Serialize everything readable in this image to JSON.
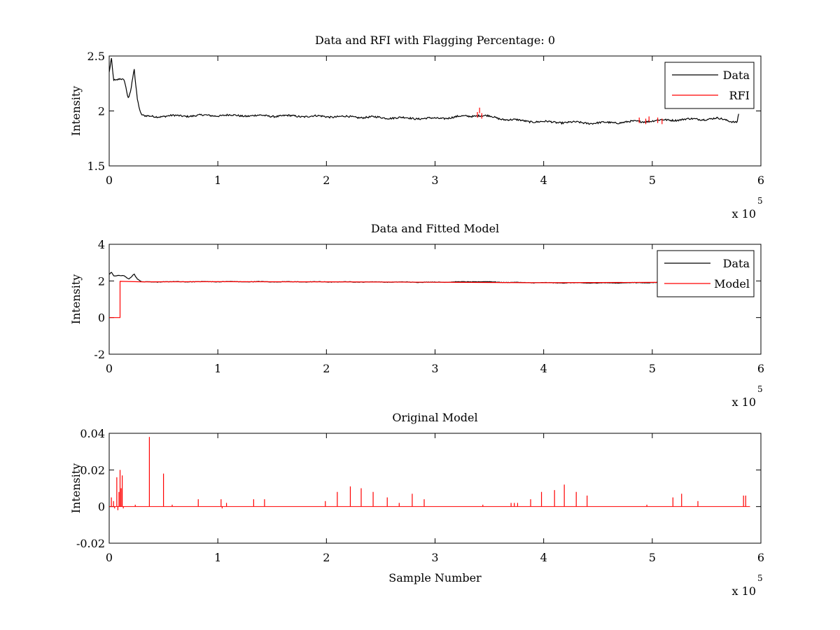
{
  "chart_data": [
    {
      "type": "line",
      "title": "Data and RFI with Flagging Percentage: 0",
      "xlabel": "",
      "ylabel": "Intensity",
      "xlim": [
        0,
        600000
      ],
      "ylim": [
        1.5,
        2.5
      ],
      "x_ticks": [
        "0",
        "1",
        "2",
        "3",
        "4",
        "5",
        "6"
      ],
      "y_ticks": [
        "1.5",
        "2",
        "2.5"
      ],
      "x_exponent": {
        "base": "x 10",
        "power": "5"
      },
      "legend": {
        "placement": "top-right",
        "entries": [
          "Data",
          "RFI"
        ]
      },
      "series": [
        {
          "name": "Data",
          "color": "#000000",
          "x": [
            0,
            2000,
            4000,
            6000,
            10000,
            14000,
            17000,
            18000,
            20000,
            23000,
            24000,
            26000,
            29000,
            32000,
            100000,
            200000,
            300000,
            340000,
            350000,
            360000,
            380000,
            400000,
            450000,
            480000,
            500000,
            520000,
            560000,
            578000,
            580000
          ],
          "y": [
            2.35,
            2.48,
            2.28,
            2.27,
            2.29,
            2.28,
            2.14,
            2.12,
            2.2,
            2.4,
            2.28,
            2.1,
            1.97,
            1.95,
            1.96,
            1.95,
            1.93,
            1.96,
            1.95,
            1.93,
            1.91,
            1.9,
            1.89,
            1.9,
            1.91,
            1.92,
            1.93,
            1.9,
            2.0
          ],
          "noise": 0.008
        },
        {
          "name": "RFI",
          "color": "#ff0000",
          "spikes": [
            {
              "x": 339000,
              "y": 1.99
            },
            {
              "x": 341000,
              "y": 2.03
            },
            {
              "x": 343000,
              "y": 1.98
            },
            {
              "x": 488000,
              "y": 1.94
            },
            {
              "x": 494000,
              "y": 1.93
            },
            {
              "x": 497000,
              "y": 1.95
            },
            {
              "x": 505000,
              "y": 1.94
            },
            {
              "x": 509000,
              "y": 1.93
            }
          ]
        }
      ]
    },
    {
      "type": "line",
      "title": "Data and Fitted Model",
      "xlabel": "",
      "ylabel": "Intensity",
      "xlim": [
        0,
        600000
      ],
      "ylim": [
        -2,
        4
      ],
      "x_ticks": [
        "0",
        "1",
        "2",
        "3",
        "4",
        "5",
        "6"
      ],
      "y_ticks": [
        "-2",
        "0",
        "2",
        "4"
      ],
      "x_exponent": {
        "base": "x 10",
        "power": "5"
      },
      "legend": {
        "placement": "top-right",
        "entries": [
          "Data",
          "Model"
        ]
      },
      "series": [
        {
          "name": "Data",
          "color": "#000000",
          "x": [
            0,
            2000,
            4000,
            6000,
            10000,
            14000,
            17000,
            18000,
            20000,
            23000,
            24000,
            26000,
            29000,
            32000,
            100000,
            200000,
            300000,
            340000,
            350000,
            360000,
            380000,
            400000,
            450000,
            480000,
            500000,
            520000,
            560000,
            578000,
            580000
          ],
          "y": [
            2.35,
            2.48,
            2.28,
            2.27,
            2.29,
            2.28,
            2.14,
            2.12,
            2.2,
            2.4,
            2.28,
            2.1,
            1.97,
            1.95,
            1.96,
            1.95,
            1.93,
            1.96,
            1.95,
            1.93,
            1.91,
            1.9,
            1.89,
            1.9,
            1.91,
            1.92,
            1.93,
            1.9,
            2.0
          ],
          "noise": 0.012
        },
        {
          "name": "Model",
          "color": "#ff0000",
          "x": [
            0,
            10000,
            10000,
            30000,
            100000,
            200000,
            300000,
            400000,
            500000,
            580000
          ],
          "y": [
            0,
            0,
            1.98,
            1.95,
            1.96,
            1.95,
            1.93,
            1.9,
            1.92,
            1.92
          ]
        }
      ]
    },
    {
      "type": "line",
      "title": "Original Model",
      "xlabel": "Sample Number",
      "ylabel": "Intensity",
      "xlim": [
        0,
        600000
      ],
      "ylim": [
        -0.02,
        0.04
      ],
      "x_ticks": [
        "0",
        "1",
        "2",
        "3",
        "4",
        "5",
        "6"
      ],
      "y_ticks": [
        "-0.02",
        "0",
        "0.02",
        "0.04"
      ],
      "x_exponent": {
        "base": "x 10",
        "power": "5"
      },
      "series": [
        {
          "color": "#ff0000",
          "x_end": 590000,
          "spikes": [
            {
              "x": 2000,
              "y": 0.005
            },
            {
              "x": 4000,
              "y": 0.003
            },
            {
              "x": 5000,
              "y": -0.001
            },
            {
              "x": 7000,
              "y": 0.016
            },
            {
              "x": 8000,
              "y": -0.002
            },
            {
              "x": 9000,
              "y": 0.008
            },
            {
              "x": 10000,
              "y": 0.02
            },
            {
              "x": 11000,
              "y": 0.01
            },
            {
              "x": 12000,
              "y": 0.017
            },
            {
              "x": 13000,
              "y": -0.001
            },
            {
              "x": 24000,
              "y": 0.001
            },
            {
              "x": 37000,
              "y": 0.038
            },
            {
              "x": 50000,
              "y": 0.018
            },
            {
              "x": 58000,
              "y": 0.001
            },
            {
              "x": 82000,
              "y": 0.004
            },
            {
              "x": 103000,
              "y": 0.004
            },
            {
              "x": 104000,
              "y": -0.001
            },
            {
              "x": 108000,
              "y": 0.002
            },
            {
              "x": 133000,
              "y": 0.004
            },
            {
              "x": 143000,
              "y": 0.004
            },
            {
              "x": 199000,
              "y": 0.003
            },
            {
              "x": 210000,
              "y": 0.008
            },
            {
              "x": 222000,
              "y": 0.011
            },
            {
              "x": 232000,
              "y": 0.01
            },
            {
              "x": 243000,
              "y": 0.008
            },
            {
              "x": 256000,
              "y": 0.005
            },
            {
              "x": 267000,
              "y": 0.002
            },
            {
              "x": 279000,
              "y": 0.007
            },
            {
              "x": 290000,
              "y": 0.004
            },
            {
              "x": 344000,
              "y": 0.001
            },
            {
              "x": 370000,
              "y": 0.002
            },
            {
              "x": 373000,
              "y": 0.002
            },
            {
              "x": 376000,
              "y": 0.002
            },
            {
              "x": 388000,
              "y": 0.004
            },
            {
              "x": 398000,
              "y": 0.008
            },
            {
              "x": 410000,
              "y": 0.009
            },
            {
              "x": 419000,
              "y": 0.012
            },
            {
              "x": 430000,
              "y": 0.008
            },
            {
              "x": 440000,
              "y": 0.006
            },
            {
              "x": 495000,
              "y": 0.001
            },
            {
              "x": 519000,
              "y": 0.005
            },
            {
              "x": 527000,
              "y": 0.007
            },
            {
              "x": 542000,
              "y": 0.003
            },
            {
              "x": 584000,
              "y": 0.006
            },
            {
              "x": 586000,
              "y": 0.006
            }
          ]
        }
      ]
    }
  ]
}
